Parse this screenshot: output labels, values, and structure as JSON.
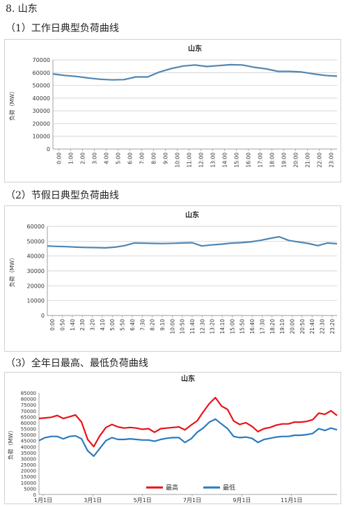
{
  "section_title": "8. 山东",
  "subsection_titles": [
    "（1）工作日典型负荷曲线",
    "（2）节假日典型负荷曲线",
    "（3）全年日最高、最低负荷曲线"
  ],
  "colors": {
    "line": "#4f86b3",
    "max": "#e8131a",
    "min": "#2a7bbf",
    "grid": "#c8c8c8",
    "axis": "#888888"
  },
  "chart_data": [
    {
      "type": "line",
      "title": "山东",
      "ylabel": "负荷（MW）",
      "ylim": [
        0,
        70000
      ],
      "yticks": [
        0,
        10000,
        20000,
        30000,
        40000,
        50000,
        60000,
        70000
      ],
      "xtick_labels": [
        "0:00",
        "1:00",
        "2:00",
        "3:00",
        "4:00",
        "5:00",
        "6:00",
        "7:00",
        "8:00",
        "9:00",
        "10:00",
        "11:00",
        "12:00",
        "13:00",
        "14:00",
        "15:00",
        "16:00",
        "17:00",
        "18:00",
        "19:00",
        "20:00",
        "21:00",
        "22:00",
        "23:00"
      ],
      "grid": true,
      "series": [
        {
          "values": [
            59000,
            57800,
            57000,
            55800,
            54800,
            54300,
            54500,
            56600,
            56600,
            60500,
            63200,
            65200,
            66000,
            64800,
            65500,
            66200,
            66000,
            64200,
            63000,
            61000,
            61000,
            60500,
            59000,
            57800,
            57200
          ]
        }
      ]
    },
    {
      "type": "line",
      "title": "山东",
      "ylabel": "负荷（MW）",
      "ylim": [
        0,
        60000
      ],
      "yticks": [
        0,
        10000,
        20000,
        30000,
        40000,
        50000,
        60000
      ],
      "xtick_labels": [
        "0:00",
        "0:50",
        "1:40",
        "2:30",
        "3:20",
        "4:10",
        "5:00",
        "5:50",
        "6:40",
        "7:30",
        "8:20",
        "9:10",
        "10:00",
        "10:50",
        "11:40",
        "12:30",
        "13:20",
        "14:10",
        "15:00",
        "15:50",
        "16:40",
        "17:30",
        "18:20",
        "19:10",
        "20:00",
        "20:50",
        "21:40",
        "22:30",
        "23:20"
      ],
      "grid": true,
      "series": [
        {
          "values": [
            46800,
            46500,
            46300,
            46000,
            45800,
            45700,
            45500,
            46000,
            47000,
            48800,
            48700,
            48500,
            48400,
            48600,
            48800,
            49000,
            46800,
            47500,
            48000,
            48700,
            49000,
            49500,
            50500,
            51800,
            53000,
            50500,
            49500,
            48500,
            47000,
            48800,
            48300
          ]
        }
      ]
    },
    {
      "type": "line",
      "title": "山东",
      "ylabel": "负荷（MW）",
      "ylim": [
        0,
        85000
      ],
      "yticks": [
        0,
        5000,
        10000,
        15000,
        20000,
        25000,
        30000,
        35000,
        40000,
        45000,
        50000,
        55000,
        60000,
        65000,
        70000,
        75000,
        80000,
        85000
      ],
      "xtick_labels": [
        "1月1日",
        "3月1日",
        "5月1日",
        "7月1日",
        "9月1日",
        "11月1日"
      ],
      "grid": false,
      "legend_position": "bottom",
      "series": [
        {
          "name": "最高",
          "values": [
            63500,
            64000,
            64500,
            66000,
            63500,
            65000,
            66500,
            60500,
            46000,
            40000,
            49000,
            56000,
            58500,
            56500,
            55500,
            56000,
            55500,
            54500,
            55000,
            52000,
            55000,
            55500,
            56000,
            56500,
            54000,
            58000,
            61500,
            69000,
            76000,
            81000,
            74000,
            71000,
            61500,
            58500,
            60000,
            57000,
            52500,
            55000,
            56000,
            58000,
            59000,
            59000,
            60500,
            60500,
            61000,
            62500,
            68000,
            67000,
            70000,
            66000
          ]
        },
        {
          "name": "最低",
          "values": [
            45000,
            47500,
            48500,
            48500,
            46500,
            48500,
            49000,
            46500,
            36500,
            32000,
            38500,
            45000,
            47500,
            46000,
            46000,
            46500,
            46000,
            45500,
            45500,
            44500,
            46000,
            47000,
            47500,
            47500,
            43500,
            46500,
            52000,
            55500,
            60500,
            63000,
            59000,
            55000,
            48500,
            47500,
            48000,
            47000,
            43500,
            46000,
            47000,
            48000,
            48500,
            48500,
            49500,
            49500,
            50000,
            51000,
            55000,
            53500,
            55500,
            54000
          ]
        }
      ]
    }
  ]
}
